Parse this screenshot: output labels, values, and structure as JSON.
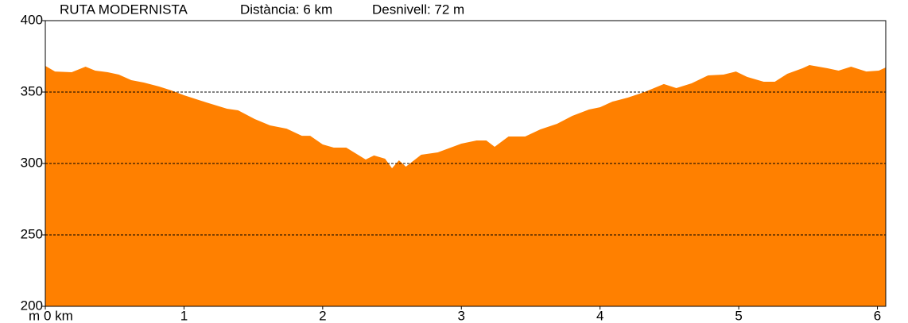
{
  "chart_data": {
    "type": "area",
    "title": "RUTA MODERNISTA",
    "annotations": [
      "Distància: 6 km",
      "Desnivell: 72 m"
    ],
    "y_label": "m",
    "color": "#ff8000",
    "x": [
      0,
      0.07,
      0.19,
      0.29,
      0.36,
      0.45,
      0.53,
      0.62,
      0.71,
      0.82,
      0.91,
      1.0,
      1.16,
      1.31,
      1.39,
      1.51,
      1.62,
      1.74,
      1.85,
      1.91,
      2.0,
      2.08,
      2.17,
      2.31,
      2.37,
      2.45,
      2.5,
      2.55,
      2.6,
      2.71,
      2.83,
      3.0,
      3.11,
      3.18,
      3.24,
      3.34,
      3.46,
      3.57,
      3.69,
      3.8,
      3.92,
      4.0,
      4.09,
      4.2,
      4.32,
      4.46,
      4.55,
      4.66,
      4.78,
      4.89,
      4.98,
      5.06,
      5.18,
      5.26,
      5.35,
      5.46,
      5.51,
      5.64,
      5.72,
      5.81,
      5.92,
      6.01,
      6.06
    ],
    "y": [
      368.3,
      364.4,
      363.9,
      367.8,
      365,
      363.9,
      362.2,
      358.3,
      356.7,
      353.9,
      351.1,
      347.8,
      342.8,
      338.3,
      337.2,
      331.1,
      326.7,
      324.4,
      319.4,
      319.4,
      313.3,
      311.1,
      311.1,
      302.8,
      305.6,
      303.3,
      296.7,
      302.2,
      297.8,
      306.1,
      307.8,
      313.9,
      316.1,
      316.1,
      311.7,
      318.9,
      318.9,
      323.9,
      327.8,
      333.3,
      337.8,
      339.4,
      343.3,
      346.1,
      350,
      355.6,
      352.8,
      356.1,
      361.7,
      362.2,
      364.4,
      360.6,
      357.2,
      357.2,
      362.8,
      366.7,
      368.9,
      366.7,
      365,
      367.8,
      364.4,
      365,
      367.2
    ],
    "xlim": [
      0,
      6.06
    ],
    "ylim": [
      200,
      400
    ],
    "xticks": [
      {
        "value": 0,
        "label": "0 km"
      },
      1,
      2,
      3,
      4,
      5,
      6
    ],
    "yticks": [
      200,
      250,
      300,
      350,
      400
    ],
    "grid": true
  }
}
